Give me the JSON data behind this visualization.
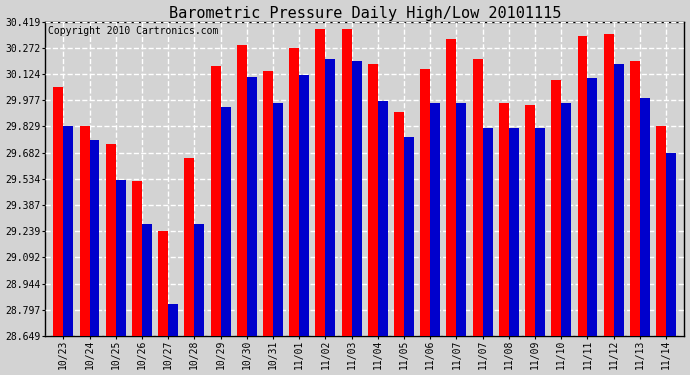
{
  "title": "Barometric Pressure Daily High/Low 20101115",
  "copyright": "Copyright 2010 Cartronics.com",
  "y_ticks": [
    28.649,
    28.797,
    28.944,
    29.092,
    29.239,
    29.387,
    29.534,
    29.682,
    29.829,
    29.977,
    30.124,
    30.272,
    30.419
  ],
  "ylim_min": 28.649,
  "ylim_max": 30.419,
  "dates": [
    "10/23",
    "10/24",
    "10/25",
    "10/26",
    "10/27",
    "10/28",
    "10/29",
    "10/30",
    "10/31",
    "11/01",
    "11/02",
    "11/03",
    "11/04",
    "11/05",
    "11/06",
    "11/07",
    "11/07",
    "11/08",
    "11/09",
    "11/10",
    "11/11",
    "11/12",
    "11/13",
    "11/14"
  ],
  "highs": [
    30.05,
    29.83,
    29.73,
    29.52,
    29.24,
    29.65,
    30.17,
    30.29,
    30.14,
    30.27,
    30.38,
    30.38,
    30.18,
    29.91,
    30.15,
    30.32,
    30.21,
    29.96,
    29.95,
    30.09,
    30.34,
    30.35,
    30.2,
    29.83
  ],
  "lows": [
    29.83,
    29.75,
    29.53,
    29.28,
    28.83,
    29.28,
    29.94,
    30.11,
    29.96,
    30.12,
    30.21,
    30.2,
    29.97,
    29.77,
    29.96,
    29.96,
    29.82,
    29.82,
    29.82,
    29.96,
    30.1,
    30.18,
    29.99,
    29.68
  ],
  "bar_width": 0.38,
  "high_color": "#ff0000",
  "low_color": "#0000cc",
  "background_color": "#d3d3d3",
  "plot_background": "#d3d3d3",
  "grid_color": "#ffffff",
  "title_fontsize": 11,
  "copyright_fontsize": 7,
  "tick_fontsize": 7,
  "fig_width": 6.9,
  "fig_height": 3.75,
  "dpi": 100
}
